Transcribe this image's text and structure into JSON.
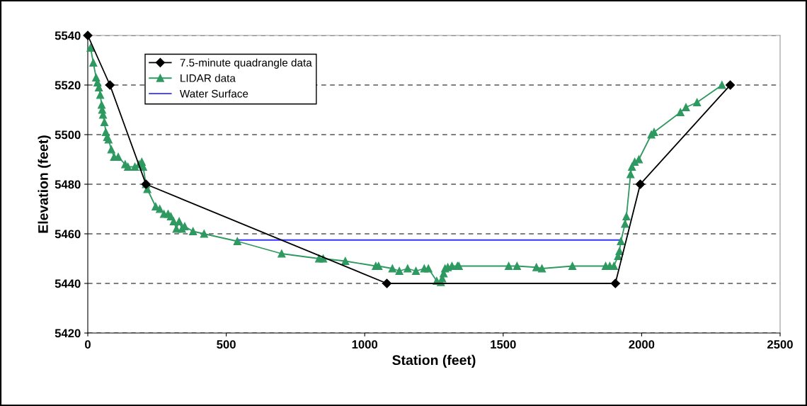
{
  "chart_data": {
    "type": "line",
    "xlabel": "Station (feet)",
    "ylabel": "Elevation (feet)",
    "xlim": [
      0,
      2500
    ],
    "xticks": [
      0,
      500,
      1000,
      1500,
      2000,
      2500
    ],
    "ylim": [
      5420,
      5540
    ],
    "yticks": [
      5420,
      5440,
      5460,
      5480,
      5500,
      5520,
      5540
    ],
    "grid": "y",
    "legend": "top left",
    "line_style": "solid",
    "series": [
      {
        "name": "7.5-minute quadrangle data",
        "color": "#000000",
        "marker": "diamond",
        "x": [
          0,
          80,
          210,
          1080,
          1905,
          1995,
          2320
        ],
        "values": [
          5540,
          5520,
          5480,
          5440,
          5440,
          5480,
          5520
        ]
      },
      {
        "name": "LIDAR data",
        "color": "#2e9960",
        "marker": "triangle",
        "x": [
          10,
          20,
          30,
          35,
          40,
          45,
          50,
          52,
          55,
          60,
          65,
          70,
          75,
          85,
          95,
          110,
          135,
          145,
          170,
          185,
          195,
          200,
          210,
          215,
          245,
          260,
          275,
          290,
          300,
          310,
          320,
          330,
          340,
          350,
          380,
          420,
          540,
          700,
          835,
          850,
          930,
          1040,
          1050,
          1100,
          1125,
          1155,
          1185,
          1215,
          1230,
          1260,
          1275,
          1280,
          1285,
          1290,
          1300,
          1315,
          1335,
          1340,
          1520,
          1550,
          1620,
          1640,
          1750,
          1870,
          1885,
          1900,
          1915,
          1920,
          1925,
          1940,
          1945,
          1960,
          1965,
          1975,
          1990,
          2035,
          2045,
          2140,
          2160,
          2200,
          2290
        ],
        "values": [
          5535,
          5529,
          5523,
          5521,
          5519,
          5516,
          5512,
          5510,
          5508,
          5505,
          5501,
          5499,
          5498,
          5494,
          5491,
          5491,
          5488,
          5487,
          5487,
          5488,
          5489,
          5487,
          5480,
          5478,
          5471,
          5470,
          5468,
          5468,
          5467,
          5465,
          5462,
          5465,
          5462,
          5463,
          5461,
          5460,
          5457,
          5452,
          5450,
          5450,
          5449,
          5447,
          5447,
          5446,
          5445,
          5446,
          5445,
          5446,
          5446,
          5441,
          5440.5,
          5442,
          5444,
          5446,
          5446.5,
          5447,
          5447,
          5447,
          5447,
          5447,
          5446.5,
          5446,
          5447,
          5447,
          5447,
          5447,
          5451,
          5453,
          5457,
          5464,
          5467,
          5484,
          5487,
          5489,
          5490,
          5500,
          5501,
          5509,
          5511,
          5513,
          5520
        ]
      },
      {
        "name": "Water Surface",
        "color": "#3333ff",
        "marker": "none",
        "x": [
          540,
          1920
        ],
        "values": [
          5457.5,
          5457.5
        ]
      }
    ]
  }
}
